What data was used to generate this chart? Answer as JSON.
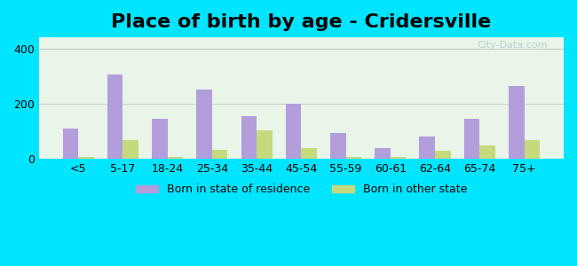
{
  "title": "Place of birth by age - Cridersville",
  "categories": [
    "<5",
    "5-17",
    "18-24",
    "25-34",
    "35-44",
    "45-54",
    "55-59",
    "60-61",
    "62-64",
    "65-74",
    "75+"
  ],
  "born_in_state": [
    110,
    305,
    145,
    250,
    155,
    200,
    95,
    40,
    80,
    145,
    265
  ],
  "born_other_state": [
    8,
    70,
    8,
    35,
    105,
    40,
    8,
    8,
    30,
    48,
    68
  ],
  "bar_color_state": "#b39ddb",
  "bar_color_other": "#c5d97d",
  "background_color_outer": "#00e5ff",
  "background_color_inner_top": "#e8f5e9",
  "background_color_inner_bottom": "#f0f8e8",
  "ylim": [
    0,
    440
  ],
  "yticks": [
    0,
    200,
    400
  ],
  "legend_state_label": "Born in state of residence",
  "legend_other_label": "Born in other state",
  "title_fontsize": 16,
  "bar_width": 0.35,
  "grid_color": "#cccccc"
}
